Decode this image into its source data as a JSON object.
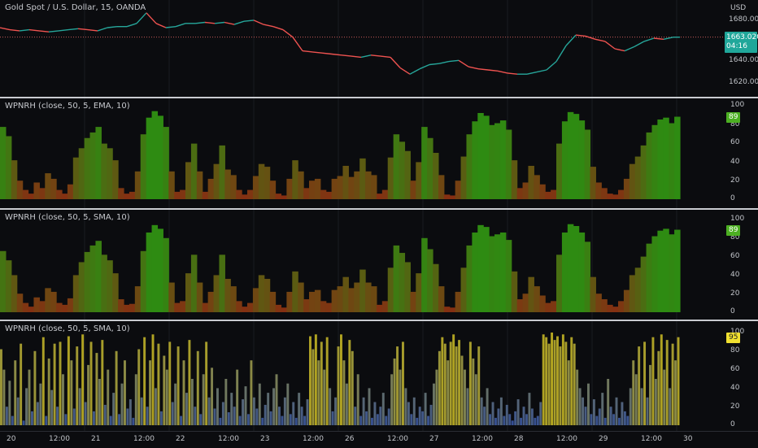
{
  "colors": {
    "background": "#0b0c0f",
    "price_up": "#26a69a",
    "price_down": "#ef5350",
    "hist_high": "#2e8b12",
    "hist_low": "#8a2a12",
    "bar_high": "#b3a520",
    "bar_low": "#2d4a9a",
    "price_badge": "#20a79a",
    "osc_badge": "#4caf22",
    "bar_badge": "#f0e030"
  },
  "price_pane": {
    "title": "Gold Spot / U.S. Dollar, 15, OANDA",
    "currency": "USD",
    "y_ticks": [
      "1680.000",
      "1640.000",
      "1620.000"
    ],
    "last_price": "1663.020",
    "countdown": "04:16"
  },
  "panes": [
    {
      "title": "WPNRH (close, 50, 5, EMA, 10)",
      "y_ticks": [
        "100",
        "80",
        "60",
        "40",
        "20",
        "0"
      ],
      "last_value": "89"
    },
    {
      "title": "WPNRH (close, 50, 5, SMA, 10)",
      "y_ticks": [
        "100",
        "80",
        "60",
        "40",
        "20",
        "0"
      ],
      "last_value": "89"
    },
    {
      "title": "WPNRH (close, 50, 5, SMA, 10)",
      "y_ticks": [
        "100",
        "80",
        "60",
        "40",
        "20",
        "0"
      ],
      "last_value": "95"
    }
  ],
  "x_axis": {
    "labels": [
      "20",
      "12:00",
      "21",
      "12:00",
      "22",
      "12:00",
      "23",
      "12:00",
      "26",
      "12:00",
      "27",
      "12:00",
      "28",
      "12:00",
      "29",
      "12:00",
      "30"
    ]
  },
  "chart_data": [
    {
      "type": "line",
      "name": "price",
      "x": [
        0,
        12,
        24,
        36,
        48,
        60,
        72,
        84,
        96,
        108,
        120,
        132,
        144,
        156,
        168,
        180,
        192,
        204,
        216,
        228,
        240,
        252,
        264,
        276,
        288,
        300,
        312,
        324,
        336,
        348,
        360,
        372,
        384,
        396,
        408,
        420,
        432,
        444,
        456,
        468,
        480,
        492,
        504,
        516,
        528,
        540,
        552,
        564,
        576,
        588,
        600,
        612,
        624,
        636,
        648,
        660,
        672,
        684,
        696,
        708,
        720,
        732,
        744,
        756,
        768,
        780,
        792,
        804,
        816,
        828,
        836
      ],
      "values": [
        1672,
        1670,
        1669,
        1670,
        1669,
        1668,
        1669,
        1670,
        1671,
        1670,
        1669,
        1672,
        1673,
        1673,
        1676,
        1686,
        1676,
        1672,
        1673,
        1676,
        1676,
        1677,
        1676,
        1677,
        1675,
        1678,
        1679,
        1675,
        1673,
        1670,
        1663,
        1650,
        1649,
        1648,
        1647,
        1646,
        1645,
        1644,
        1646,
        1645,
        1644,
        1634,
        1628,
        1633,
        1637,
        1638,
        1640,
        1641,
        1635,
        1633,
        1632,
        1631,
        1629,
        1628,
        1628,
        1630,
        1632,
        1640,
        1655,
        1665,
        1664,
        1661,
        1659,
        1652,
        1650,
        1654,
        1659,
        1662,
        1661,
        1663,
        1663
      ],
      "ylim": [
        1612,
        1692
      ],
      "reference_line": 1663.02
    },
    {
      "type": "area",
      "name": "wpnrh_ema",
      "values": [
        78,
        68,
        42,
        20,
        10,
        6,
        18,
        12,
        28,
        22,
        10,
        6,
        16,
        45,
        55,
        66,
        72,
        78,
        60,
        55,
        42,
        12,
        6,
        8,
        30,
        70,
        88,
        95,
        90,
        78,
        30,
        8,
        10,
        40,
        60,
        30,
        8,
        22,
        38,
        58,
        32,
        26,
        10,
        5,
        10,
        25,
        38,
        35,
        20,
        6,
        4,
        22,
        42,
        30,
        12,
        20,
        22,
        10,
        8,
        22,
        25,
        36,
        24,
        30,
        44,
        30,
        26,
        6,
        10,
        45,
        70,
        62,
        52,
        20,
        40,
        78,
        66,
        50,
        26,
        5,
        4,
        20,
        46,
        70,
        84,
        93,
        90,
        80,
        82,
        85,
        75,
        42,
        12,
        18,
        36,
        26,
        16,
        8,
        10,
        60,
        84,
        94,
        92,
        85,
        75,
        35,
        18,
        12,
        6,
        5,
        10,
        22,
        38,
        46,
        58,
        72,
        80,
        86,
        88,
        82,
        89
      ],
      "ylim": [
        0,
        100
      ]
    },
    {
      "type": "area",
      "name": "wpnrh_sma",
      "values": [
        66,
        56,
        40,
        20,
        10,
        6,
        16,
        12,
        26,
        22,
        10,
        8,
        15,
        40,
        54,
        65,
        72,
        77,
        62,
        56,
        42,
        14,
        8,
        9,
        28,
        66,
        86,
        94,
        90,
        80,
        32,
        10,
        12,
        42,
        62,
        32,
        10,
        22,
        40,
        62,
        36,
        28,
        12,
        6,
        10,
        26,
        40,
        36,
        22,
        8,
        5,
        22,
        44,
        32,
        14,
        22,
        24,
        12,
        10,
        24,
        28,
        38,
        26,
        32,
        46,
        32,
        28,
        8,
        12,
        48,
        72,
        64,
        54,
        22,
        42,
        80,
        68,
        52,
        28,
        6,
        5,
        22,
        48,
        72,
        86,
        94,
        92,
        82,
        84,
        86,
        78,
        44,
        14,
        20,
        38,
        28,
        18,
        10,
        12,
        62,
        86,
        95,
        93,
        86,
        76,
        38,
        20,
        14,
        8,
        6,
        12,
        24,
        40,
        48,
        60,
        74,
        82,
        88,
        90,
        84,
        89
      ],
      "ylim": [
        0,
        100
      ]
    },
    {
      "type": "bar",
      "name": "wpnrh_bars",
      "values": [
        82,
        60,
        20,
        48,
        10,
        70,
        30,
        88,
        5,
        40,
        60,
        15,
        80,
        25,
        45,
        95,
        10,
        72,
        38,
        88,
        20,
        90,
        55,
        12,
        96,
        70,
        18,
        85,
        40,
        98,
        25,
        65,
        90,
        15,
        78,
        50,
        92,
        22,
        60,
        10,
        35,
        80,
        12,
        45,
        70,
        18,
        28,
        8,
        55,
        82,
        30,
        95,
        20,
        70,
        98,
        40,
        88,
        15,
        75,
        60,
        90,
        25,
        45,
        85,
        10,
        70,
        35,
        92,
        50,
        20,
        80,
        12,
        55,
        90,
        30,
        62,
        18,
        40,
        8,
        25,
        50,
        14,
        35,
        20,
        60,
        10,
        28,
        42,
        12,
        70,
        30,
        18,
        45,
        8,
        22,
        35,
        15,
        40,
        55,
        20,
        10,
        30,
        45,
        12,
        25,
        8,
        35,
        20,
        10,
        28,
        96,
        82,
        98,
        70,
        90,
        60,
        95,
        40,
        15,
        30,
        85,
        98,
        70,
        45,
        92,
        80,
        20,
        55,
        10,
        30,
        15,
        40,
        8,
        25,
        12,
        20,
        35,
        10,
        18,
        55,
        72,
        85,
        60,
        90,
        40,
        25,
        12,
        30,
        8,
        20,
        15,
        35,
        10,
        22,
        45,
        60,
        80,
        95,
        88,
        70,
        90,
        98,
        85,
        92,
        75,
        60,
        40,
        90,
        72,
        55,
        85,
        30,
        20,
        40,
        12,
        25,
        8,
        18,
        30,
        10,
        22,
        12,
        5,
        15,
        28,
        8,
        20,
        12,
        35,
        18,
        8,
        10,
        25,
        98,
        95,
        88,
        100,
        92,
        96,
        85,
        98,
        90,
        70,
        95,
        88,
        60,
        40,
        30,
        20,
        45,
        12,
        28,
        10,
        18,
        35,
        8,
        50,
        20,
        12,
        30,
        8,
        25,
        15,
        10,
        40,
        70,
        55,
        85,
        40,
        90,
        30,
        65,
        95,
        50,
        80,
        98,
        60,
        92,
        40,
        88,
        70,
        95
      ],
      "ylim": [
        0,
        100
      ]
    }
  ]
}
